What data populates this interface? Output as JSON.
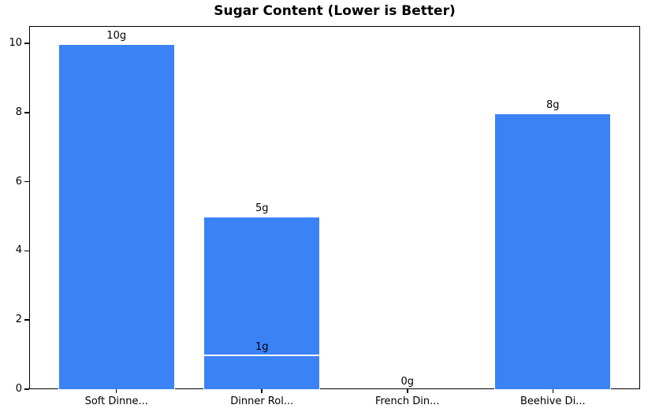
{
  "chart_data": {
    "type": "bar",
    "title": "Sugar Content (Lower is Better)",
    "xlabel": "",
    "ylabel": "",
    "categories": [
      "Soft Dinne...",
      "Dinner Rol...",
      "French Din...",
      "Beehive Di..."
    ],
    "bars": [
      {
        "category_index": 0,
        "value": 10,
        "label": "10g"
      },
      {
        "category_index": 1,
        "value": 5,
        "label": "5g"
      },
      {
        "category_index": 1,
        "value": 1,
        "label": "1g",
        "overlay": true
      },
      {
        "category_index": 2,
        "value": 0,
        "label": "0g"
      },
      {
        "category_index": 3,
        "value": 8,
        "label": "8g"
      }
    ],
    "yticks": [
      0,
      2,
      4,
      6,
      8,
      10
    ],
    "ylim": [
      0,
      10.5
    ],
    "xlim": [
      -0.6,
      3.6
    ],
    "bar_width_units": 0.8,
    "grid": false,
    "legend": null,
    "bar_color": "#3b82f6",
    "bar_edge_color": "#ffffff",
    "spine_color": "#000000",
    "text_color": "#000000",
    "background": "#ffffff"
  }
}
